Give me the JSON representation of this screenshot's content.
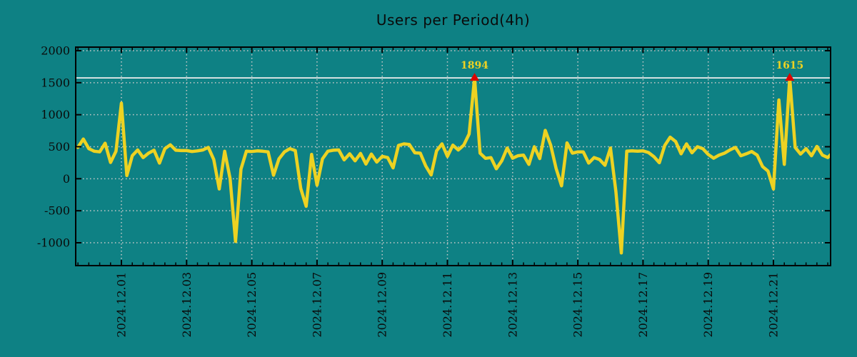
{
  "chart_data": {
    "type": "line",
    "title": "Users per Period(4h)",
    "xlabel": "",
    "ylabel": "",
    "x_tick_labels": [
      "2024.12.01",
      "2024.12.03",
      "2024.12.05",
      "2024.12.07",
      "2024.12.09",
      "2024.12.11",
      "2024.12.13",
      "2024.12.15",
      "2024.12.17",
      "2024.12.19",
      "2024.12.21"
    ],
    "x_tick_interval_days": 2,
    "x_minor_tick_hours": 8,
    "y_tick_labels": [
      "-1000",
      "-500",
      "0",
      "500",
      "1000",
      "1500",
      "2000"
    ],
    "y_ticks": [
      -1000,
      -500,
      0,
      500,
      1000,
      1500,
      2000
    ],
    "ylim": [
      -1355,
      2030
    ],
    "x_range_days_rel_first_tick": [
      -1.4,
      21.75
    ],
    "sample_interval_hours": 4,
    "series_start_offset_days": -1.3333,
    "grid": true,
    "legend": false,
    "clip_line_value": 1575,
    "values": [
      490,
      620,
      470,
      430,
      420,
      555,
      255,
      430,
      1180,
      50,
      360,
      450,
      330,
      400,
      445,
      245,
      470,
      530,
      445,
      440,
      440,
      425,
      435,
      450,
      490,
      300,
      -160,
      430,
      0,
      -980,
      150,
      430,
      425,
      435,
      430,
      420,
      55,
      310,
      420,
      470,
      440,
      -150,
      -430,
      380,
      -100,
      310,
      430,
      445,
      450,
      295,
      390,
      280,
      395,
      230,
      385,
      260,
      350,
      330,
      170,
      520,
      545,
      535,
      405,
      400,
      200,
      60,
      435,
      545,
      350,
      525,
      450,
      525,
      700,
      1894,
      400,
      318,
      330,
      155,
      280,
      480,
      320,
      360,
      370,
      225,
      500,
      315,
      755,
      525,
      160,
      -110,
      560,
      400,
      420,
      420,
      245,
      330,
      300,
      210,
      480,
      -200,
      -1160,
      430,
      435,
      430,
      435,
      410,
      345,
      250,
      520,
      650,
      580,
      390,
      545,
      405,
      500,
      470,
      380,
      320,
      370,
      400,
      450,
      490,
      360,
      390,
      425,
      370,
      190,
      120,
      -160,
      1230,
      225,
      1615,
      490,
      385,
      470,
      360,
      505,
      370,
      330,
      420
    ],
    "annotations": [
      {
        "text": "1894",
        "index": 73
      },
      {
        "text": "1615",
        "index": 131
      }
    ],
    "colors": {
      "background": "#0E8184",
      "line": "#EDD222",
      "grid": "#C9C9C9",
      "threshold_line": "#EDEDED",
      "peak_marker": "#DD0500",
      "annotation_text": "#EDD222",
      "axis": "#000000",
      "tick_text": "#0a0a0a",
      "title_text": "#0a0a0a"
    }
  }
}
